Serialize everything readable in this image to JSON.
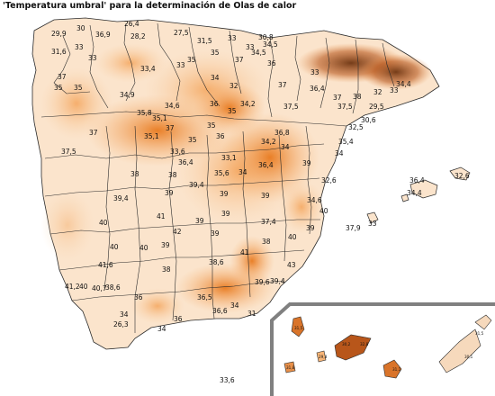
{
  "title": "'Temperatura umbral' para la determinación de Olas de calor",
  "colors": {
    "low": "#fdf1e6",
    "mid": "#f7c08a",
    "high": "#f08a2c",
    "peak": "#c4570f",
    "mountain": "#7a3a10",
    "border": "#2b2b2b",
    "inset_frame": "#808080"
  },
  "peninsula_values": [
    "26,4",
    "29,9",
    "30",
    "36,9",
    "28,2",
    "27,5",
    "30,8",
    "33",
    "31,5",
    "33",
    "34,5",
    "31,6",
    "33",
    "33",
    "34,5",
    "35",
    "36",
    "37",
    "33,4",
    "33",
    "35",
    "37",
    "34",
    "32",
    "37",
    "33",
    "36,4",
    "37",
    "38",
    "32",
    "33",
    "35",
    "35",
    "34,9",
    "34,6",
    "36",
    "35",
    "34,2",
    "37,5",
    "37,5",
    "29,5",
    "34,4",
    "35,8",
    "35,1",
    "35",
    "30,6",
    "37",
    "37",
    "36",
    "36,8",
    "32,5",
    "35,1",
    "35",
    "34,2",
    "35,4",
    "37,5",
    "33,6",
    "34",
    "36,4",
    "33,1",
    "34",
    "36,4",
    "35,6",
    "38",
    "38",
    "34",
    "39",
    "39,4",
    "39",
    "32,6",
    "39,4",
    "39",
    "39",
    "34,6",
    "41",
    "40",
    "39",
    "42",
    "39",
    "37,4",
    "37,9",
    "40",
    "39",
    "40",
    "40",
    "39",
    "38",
    "39",
    "41,6",
    "40",
    "38",
    "38,6",
    "41",
    "43",
    "41,2",
    "40",
    "38,6",
    "40,7",
    "39,4",
    "36",
    "36,5",
    "39,6",
    "36,6",
    "34",
    "36",
    "34",
    "31",
    "26,3",
    "34"
  ],
  "balearic_values": [
    "32,6",
    "36,4",
    "34,4",
    "33"
  ],
  "canary_values": [
    "31,5",
    "31,8",
    "29,8",
    "30,2",
    "32,8",
    "31,1",
    "31,5",
    "30,1"
  ],
  "standalone_value": "33,6"
}
